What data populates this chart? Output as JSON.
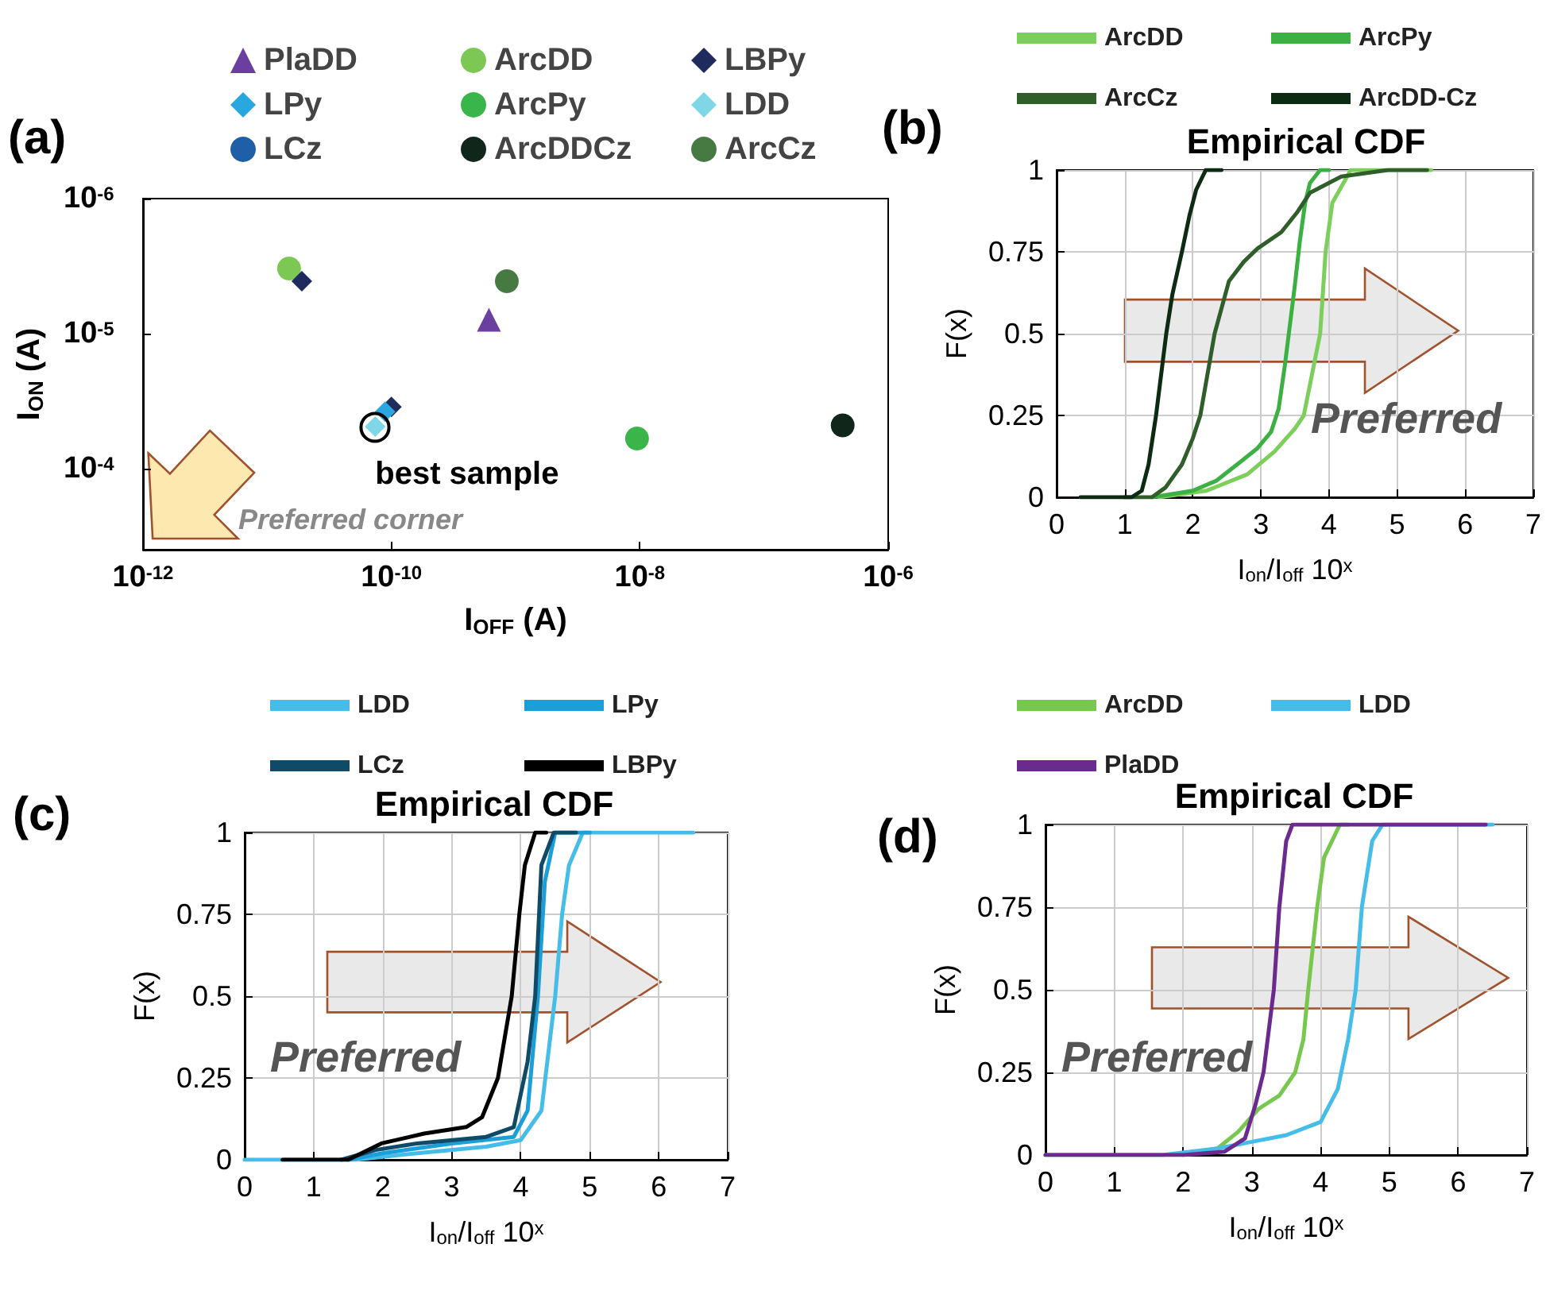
{
  "chart_data": [
    {
      "type": "scatter",
      "annotations": [
        "(a)",
        {
          "text": "best sample",
          "x": 7.4e-11,
          "y": 4.9e-05
        },
        "Preferred corner"
      ],
      "xlabel": "I$_{OFF}$ (A)",
      "ylabel": "I$_{ON}$ (A)",
      "log": "xy",
      "xlim": [
        1e-12,
        1e-06
      ],
      "ylim": [
        0.0004,
        1e-06
      ],
      "xticks": [
        {
          "value": 1e-12,
          "label": "10$^{-12}$"
        },
        {
          "value": 1e-10,
          "label": "10$^{-10}$"
        },
        {
          "value": 1e-08,
          "label": "10$^{-8}$"
        },
        {
          "value": 1e-06,
          "label": "10$^{-6}$"
        }
      ],
      "yticks": [
        {
          "value": 1e-06,
          "label": "10$^{-6}$"
        },
        {
          "value": 1e-05,
          "label": "10$^{-5}$"
        },
        {
          "value": 0.0001,
          "label": "10$^{-4}$"
        }
      ],
      "legend": "top",
      "series": [
        {
          "name": "PlaDD",
          "color": "#6b3fa0",
          "marker": "triangle",
          "x": [
            6.1e-10
          ],
          "values": [
            7.9e-06
          ]
        },
        {
          "name": "ArcDD",
          "color": "#7dc855",
          "marker": "circle",
          "x": [
            1.5e-11
          ],
          "values": [
            3.3e-06
          ]
        },
        {
          "name": "LBPy",
          "color": "#1f2a5e",
          "marker": "diamond",
          "x": [
            1.9e-11,
            1e-10
          ],
          "values": [
            4.1e-06,
            3.5e-05
          ]
        },
        {
          "name": "LPy",
          "color": "#29a8e0",
          "marker": "diamond",
          "x": [
            8.9e-11
          ],
          "values": [
            3.8e-05
          ]
        },
        {
          "name": "ArcPy",
          "color": "#3ab54a",
          "marker": "circle",
          "x": [
            9.5e-09
          ],
          "values": [
            6e-05
          ]
        },
        {
          "name": "LDD",
          "color": "#7fd6e6",
          "marker": "diamond",
          "x": [
            7.4e-11
          ],
          "values": [
            4.9e-05
          ]
        },
        {
          "name": "LCz",
          "color": "#1f5fa8",
          "marker": "circle",
          "x": [
            null
          ],
          "values": [
            null
          ]
        },
        {
          "name": "ArcDDCz",
          "color": "#10261a",
          "marker": "circle",
          "x": [
            4.3e-07
          ],
          "values": [
            4.8e-05
          ]
        },
        {
          "name": "ArcCz",
          "color": "#467a42",
          "marker": "circle",
          "x": [
            8.5e-10
          ],
          "values": [
            4.1e-06
          ]
        }
      ]
    },
    {
      "type": "line",
      "title": "Empirical CDF",
      "annotations": [
        "(b)",
        "Preferred"
      ],
      "xlabel": "I$_{on}$/I$_{off}$ 10$^{x}$",
      "ylabel": "F(x)",
      "xlim": [
        0,
        7
      ],
      "ylim": [
        0,
        1
      ],
      "xticks": [
        0,
        1,
        2,
        3,
        4,
        5,
        6,
        7
      ],
      "yticks": [
        0,
        0.25,
        0.5,
        0.75,
        1
      ],
      "grid": true,
      "legend": "top",
      "marker": "none",
      "line_style": "solid",
      "series": [
        {
          "name": "ArcDD",
          "color": "#7ccf5a",
          "x": [
            1.5,
            2.2,
            2.8,
            3.2,
            3.5,
            3.63,
            3.87,
            3.95,
            4.05,
            4.32,
            5.5
          ],
          "values": [
            0,
            0.02,
            0.07,
            0.14,
            0.21,
            0.25,
            0.5,
            0.75,
            0.9,
            1,
            1
          ]
        },
        {
          "name": "ArcPy",
          "color": "#3cb043",
          "x": [
            1.4,
            2.0,
            2.34,
            2.65,
            2.95,
            3.15,
            3.26,
            3.35,
            3.41,
            3.5,
            3.57,
            3.65,
            3.72,
            3.87,
            4.0
          ],
          "values": [
            0,
            0.02,
            0.05,
            0.1,
            0.15,
            0.2,
            0.27,
            0.4,
            0.5,
            0.65,
            0.78,
            0.9,
            0.96,
            1,
            1
          ]
        },
        {
          "name": "ArcCz",
          "color": "#2f5e2a",
          "x": [
            1.0,
            1.4,
            1.6,
            1.84,
            2.0,
            2.11,
            2.32,
            2.53,
            2.75,
            2.95,
            3.3,
            3.53,
            3.72,
            4.18,
            4.87,
            5.44
          ],
          "values": [
            0,
            0,
            0.03,
            0.1,
            0.18,
            0.25,
            0.5,
            0.66,
            0.72,
            0.76,
            0.81,
            0.87,
            0.93,
            0.98,
            1,
            1
          ]
        },
        {
          "name": "ArcDD-Cz",
          "color": "#0d2a12",
          "x": [
            0.35,
            1.1,
            1.25,
            1.35,
            1.46,
            1.55,
            1.61,
            1.7,
            1.84,
            1.95,
            2.05,
            2.19,
            2.42
          ],
          "values": [
            0,
            0,
            0.02,
            0.1,
            0.25,
            0.4,
            0.5,
            0.62,
            0.75,
            0.86,
            0.94,
            1,
            1
          ]
        }
      ]
    },
    {
      "type": "line",
      "title": "Empirical CDF",
      "annotations": [
        "(c)",
        "Preferred"
      ],
      "xlabel": "I$_{on}$/I$_{off}$ 10$^{x}$",
      "ylabel": "F(x)",
      "xlim": [
        0,
        7
      ],
      "ylim": [
        0,
        1
      ],
      "xticks": [
        0,
        1,
        2,
        3,
        4,
        5,
        6,
        7
      ],
      "yticks": [
        0,
        0.25,
        0.5,
        0.75,
        1
      ],
      "grid": true,
      "legend": "top",
      "marker": "none",
      "line_style": "solid",
      "series": [
        {
          "name": "LDD",
          "color": "#45bde8",
          "x": [
            0,
            1.6,
            2.5,
            3.5,
            4.0,
            4.3,
            4.5,
            4.6,
            4.7,
            4.9,
            6.5
          ],
          "values": [
            0,
            0,
            0.02,
            0.04,
            0.06,
            0.15,
            0.5,
            0.75,
            0.9,
            1,
            1
          ]
        },
        {
          "name": "LPy",
          "color": "#1a9fd8",
          "x": [
            1.5,
            2.0,
            3.0,
            3.9,
            4.1,
            4.25,
            4.35,
            4.5,
            5.0
          ],
          "values": [
            0,
            0.02,
            0.05,
            0.07,
            0.15,
            0.5,
            0.85,
            1,
            1
          ]
        },
        {
          "name": "LCz",
          "color": "#0f4a66",
          "x": [
            1.4,
            1.9,
            2.5,
            3.5,
            3.9,
            4.1,
            4.21,
            4.3,
            4.48,
            4.8
          ],
          "values": [
            0,
            0.03,
            0.05,
            0.07,
            0.1,
            0.3,
            0.5,
            0.9,
            1,
            1
          ]
        },
        {
          "name": "LBPy",
          "color": "#000000",
          "x": [
            0.55,
            1.5,
            1.98,
            2.6,
            3.21,
            3.44,
            3.67,
            3.87,
            3.98,
            4.06,
            4.21,
            4.37
          ],
          "values": [
            0,
            0,
            0.05,
            0.08,
            0.1,
            0.13,
            0.25,
            0.5,
            0.75,
            0.9,
            1,
            1
          ]
        }
      ]
    },
    {
      "type": "line",
      "title": "Empirical CDF",
      "annotations": [
        "(d)",
        "Preferred"
      ],
      "xlabel": "I$_{on}$/I$_{off}$ 10$^{x}$",
      "ylabel": "F(x)",
      "xlim": [
        0,
        7
      ],
      "ylim": [
        0,
        1
      ],
      "xticks": [
        0,
        1,
        2,
        3,
        4,
        5,
        6,
        7
      ],
      "yticks": [
        0,
        0.25,
        0.5,
        0.75,
        1
      ],
      "grid": true,
      "legend": "top",
      "marker": "none",
      "line_style": "solid",
      "series": [
        {
          "name": "ArcDD",
          "color": "#78c850",
          "x": [
            2.0,
            2.5,
            2.8,
            3.1,
            3.4,
            3.63,
            3.75,
            3.82,
            3.95,
            4.05,
            4.28,
            4.4
          ],
          "values": [
            0,
            0.02,
            0.07,
            0.14,
            0.18,
            0.25,
            0.35,
            0.5,
            0.75,
            0.9,
            1,
            1
          ]
        },
        {
          "name": "LDD",
          "color": "#45bde8",
          "x": [
            0,
            1.7,
            2.5,
            3.0,
            3.5,
            4.0,
            4.25,
            4.4,
            4.51,
            4.6,
            4.75,
            4.9,
            6.5
          ],
          "values": [
            0,
            0,
            0.02,
            0.04,
            0.06,
            0.1,
            0.2,
            0.35,
            0.5,
            0.75,
            0.95,
            1,
            1
          ]
        },
        {
          "name": "PlaDD",
          "color": "#6a2a8e",
          "x": [
            0,
            2.0,
            2.6,
            2.9,
            3.05,
            3.17,
            3.32,
            3.4,
            3.5,
            3.59,
            6.4
          ],
          "values": [
            0,
            0,
            0.01,
            0.05,
            0.15,
            0.25,
            0.5,
            0.75,
            0.95,
            1,
            1
          ]
        }
      ]
    }
  ]
}
